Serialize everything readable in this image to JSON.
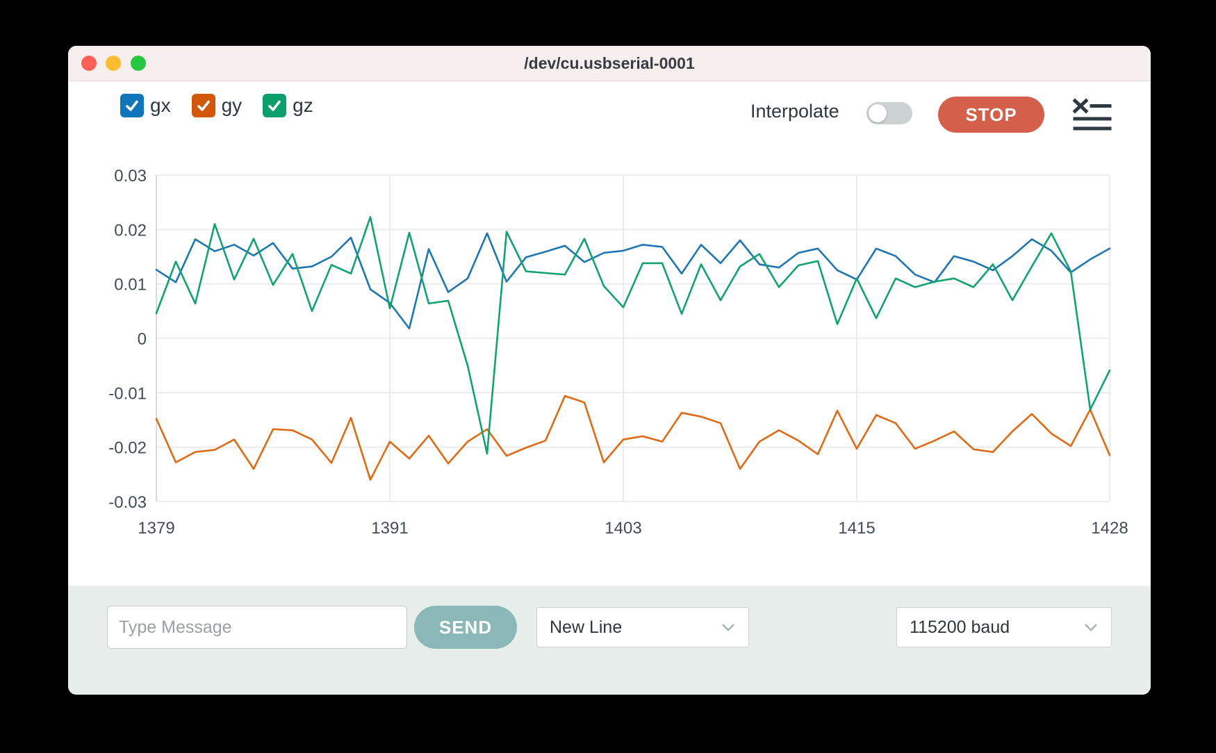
{
  "window": {
    "title": "/dev/cu.usbserial-0001"
  },
  "traffic_lights": {
    "close_color": "#ff5f57",
    "minimize_color": "#febc2e",
    "zoom_color": "#27c840"
  },
  "legend": {
    "items": [
      {
        "id": "gx",
        "label": "gx",
        "color": "#0e76b9",
        "checked": true
      },
      {
        "id": "gy",
        "label": "gy",
        "color": "#d35708",
        "checked": true
      },
      {
        "id": "gz",
        "label": "gz",
        "color": "#0b9f6b",
        "checked": true
      }
    ]
  },
  "toolbar": {
    "interpolate_label": "Interpolate",
    "interpolate_on": false,
    "stop_label": "STOP"
  },
  "chart_data": {
    "type": "line",
    "xlim": [
      1379,
      1428
    ],
    "ylim": [
      -0.03,
      0.03
    ],
    "x_ticks": [
      1379,
      1391,
      1403,
      1415,
      1428
    ],
    "y_ticks": [
      0.03,
      0.02,
      0.01,
      0,
      -0.01,
      -0.02,
      -0.03
    ],
    "grid": true,
    "grid_color": "#e8e8e8",
    "axis_line_color": "#d7dbdc",
    "legend_position": "top-left",
    "title": "",
    "xlabel": "",
    "ylabel": "",
    "series": [
      {
        "name": "gx",
        "color": "#1c75b4",
        "values": [
          0.0126,
          0.0103,
          0.0182,
          0.016,
          0.0172,
          0.0152,
          0.0175,
          0.0128,
          0.0132,
          0.015,
          0.0185,
          0.009,
          0.0065,
          0.0018,
          0.0164,
          0.0085,
          0.011,
          0.0193,
          0.0104,
          0.0149,
          0.0159,
          0.017,
          0.014,
          0.0157,
          0.0161,
          0.0172,
          0.0168,
          0.0119,
          0.0172,
          0.0138,
          0.018,
          0.0136,
          0.013,
          0.0157,
          0.0165,
          0.0125,
          0.0108,
          0.0165,
          0.0151,
          0.0117,
          0.0103,
          0.0151,
          0.0141,
          0.0125,
          0.0151,
          0.0182,
          0.0161,
          0.0121,
          0.0145,
          0.0165
        ]
      },
      {
        "name": "gy",
        "color": "#df6a14",
        "values": [
          -0.0148,
          -0.0228,
          -0.0209,
          -0.0205,
          -0.0186,
          -0.024,
          -0.0167,
          -0.0169,
          -0.0186,
          -0.0229,
          -0.0146,
          -0.026,
          -0.019,
          -0.0221,
          -0.0179,
          -0.023,
          -0.019,
          -0.0167,
          -0.0216,
          -0.0201,
          -0.0188,
          -0.0106,
          -0.0118,
          -0.0228,
          -0.0186,
          -0.018,
          -0.019,
          -0.0137,
          -0.0144,
          -0.0156,
          -0.024,
          -0.019,
          -0.0169,
          -0.0188,
          -0.0213,
          -0.0133,
          -0.0203,
          -0.0141,
          -0.0156,
          -0.0203,
          -0.0188,
          -0.0171,
          -0.0204,
          -0.0209,
          -0.0171,
          -0.0139,
          -0.0175,
          -0.0198,
          -0.0131,
          -0.0215
        ]
      },
      {
        "name": "gz",
        "color": "#11a173",
        "values": [
          0.0046,
          0.0141,
          0.0064,
          0.021,
          0.0108,
          0.0183,
          0.0098,
          0.0155,
          0.005,
          0.0135,
          0.0119,
          0.0223,
          0.0055,
          0.0194,
          0.0064,
          0.0069,
          -0.005,
          -0.0212,
          0.0196,
          0.0123,
          0.012,
          0.0117,
          0.0183,
          0.0096,
          0.0057,
          0.0138,
          0.0138,
          0.0045,
          0.0136,
          0.007,
          0.0132,
          0.0155,
          0.0094,
          0.0134,
          0.0142,
          0.0026,
          0.011,
          0.0037,
          0.011,
          0.0094,
          0.0104,
          0.011,
          0.0094,
          0.0136,
          0.007,
          0.0132,
          0.0193,
          0.0123,
          -0.0131,
          -0.0059
        ]
      }
    ]
  },
  "message_bar": {
    "input_placeholder": "Type Message",
    "send_label": "SEND",
    "line_ending": "New Line",
    "baud": "115200 baud"
  }
}
